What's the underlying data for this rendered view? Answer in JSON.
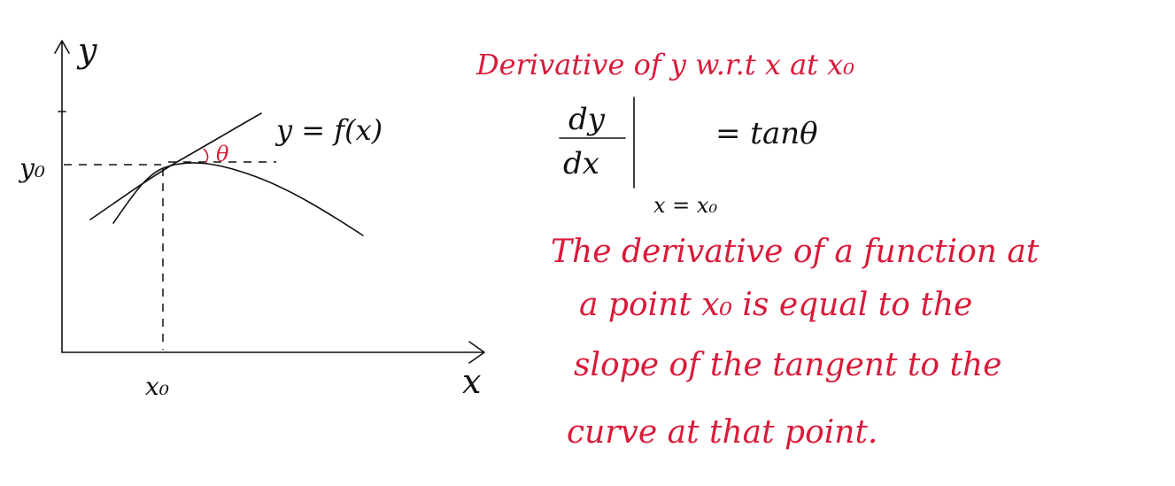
{
  "graph": {
    "y_axis_label": "y",
    "x_axis_label": "x",
    "y0_label": "y₀",
    "x0_label": "x₀",
    "curve_label": "y = f(x)",
    "angle_label": "θ"
  },
  "notes": {
    "heading": "Derivative of y w.r.t x at x₀",
    "formula_numerator": "dy",
    "formula_denominator": "dx",
    "formula_rhs": "= tanθ",
    "formula_eval": "x = x₀",
    "explanation_lines": [
      "The derivative of a function at",
      "a point x₀ is equal to the",
      "slope of the tangent to the",
      "curve at that point."
    ]
  },
  "colors": {
    "ink": "#111111",
    "red_ink": "#d81b3a"
  }
}
